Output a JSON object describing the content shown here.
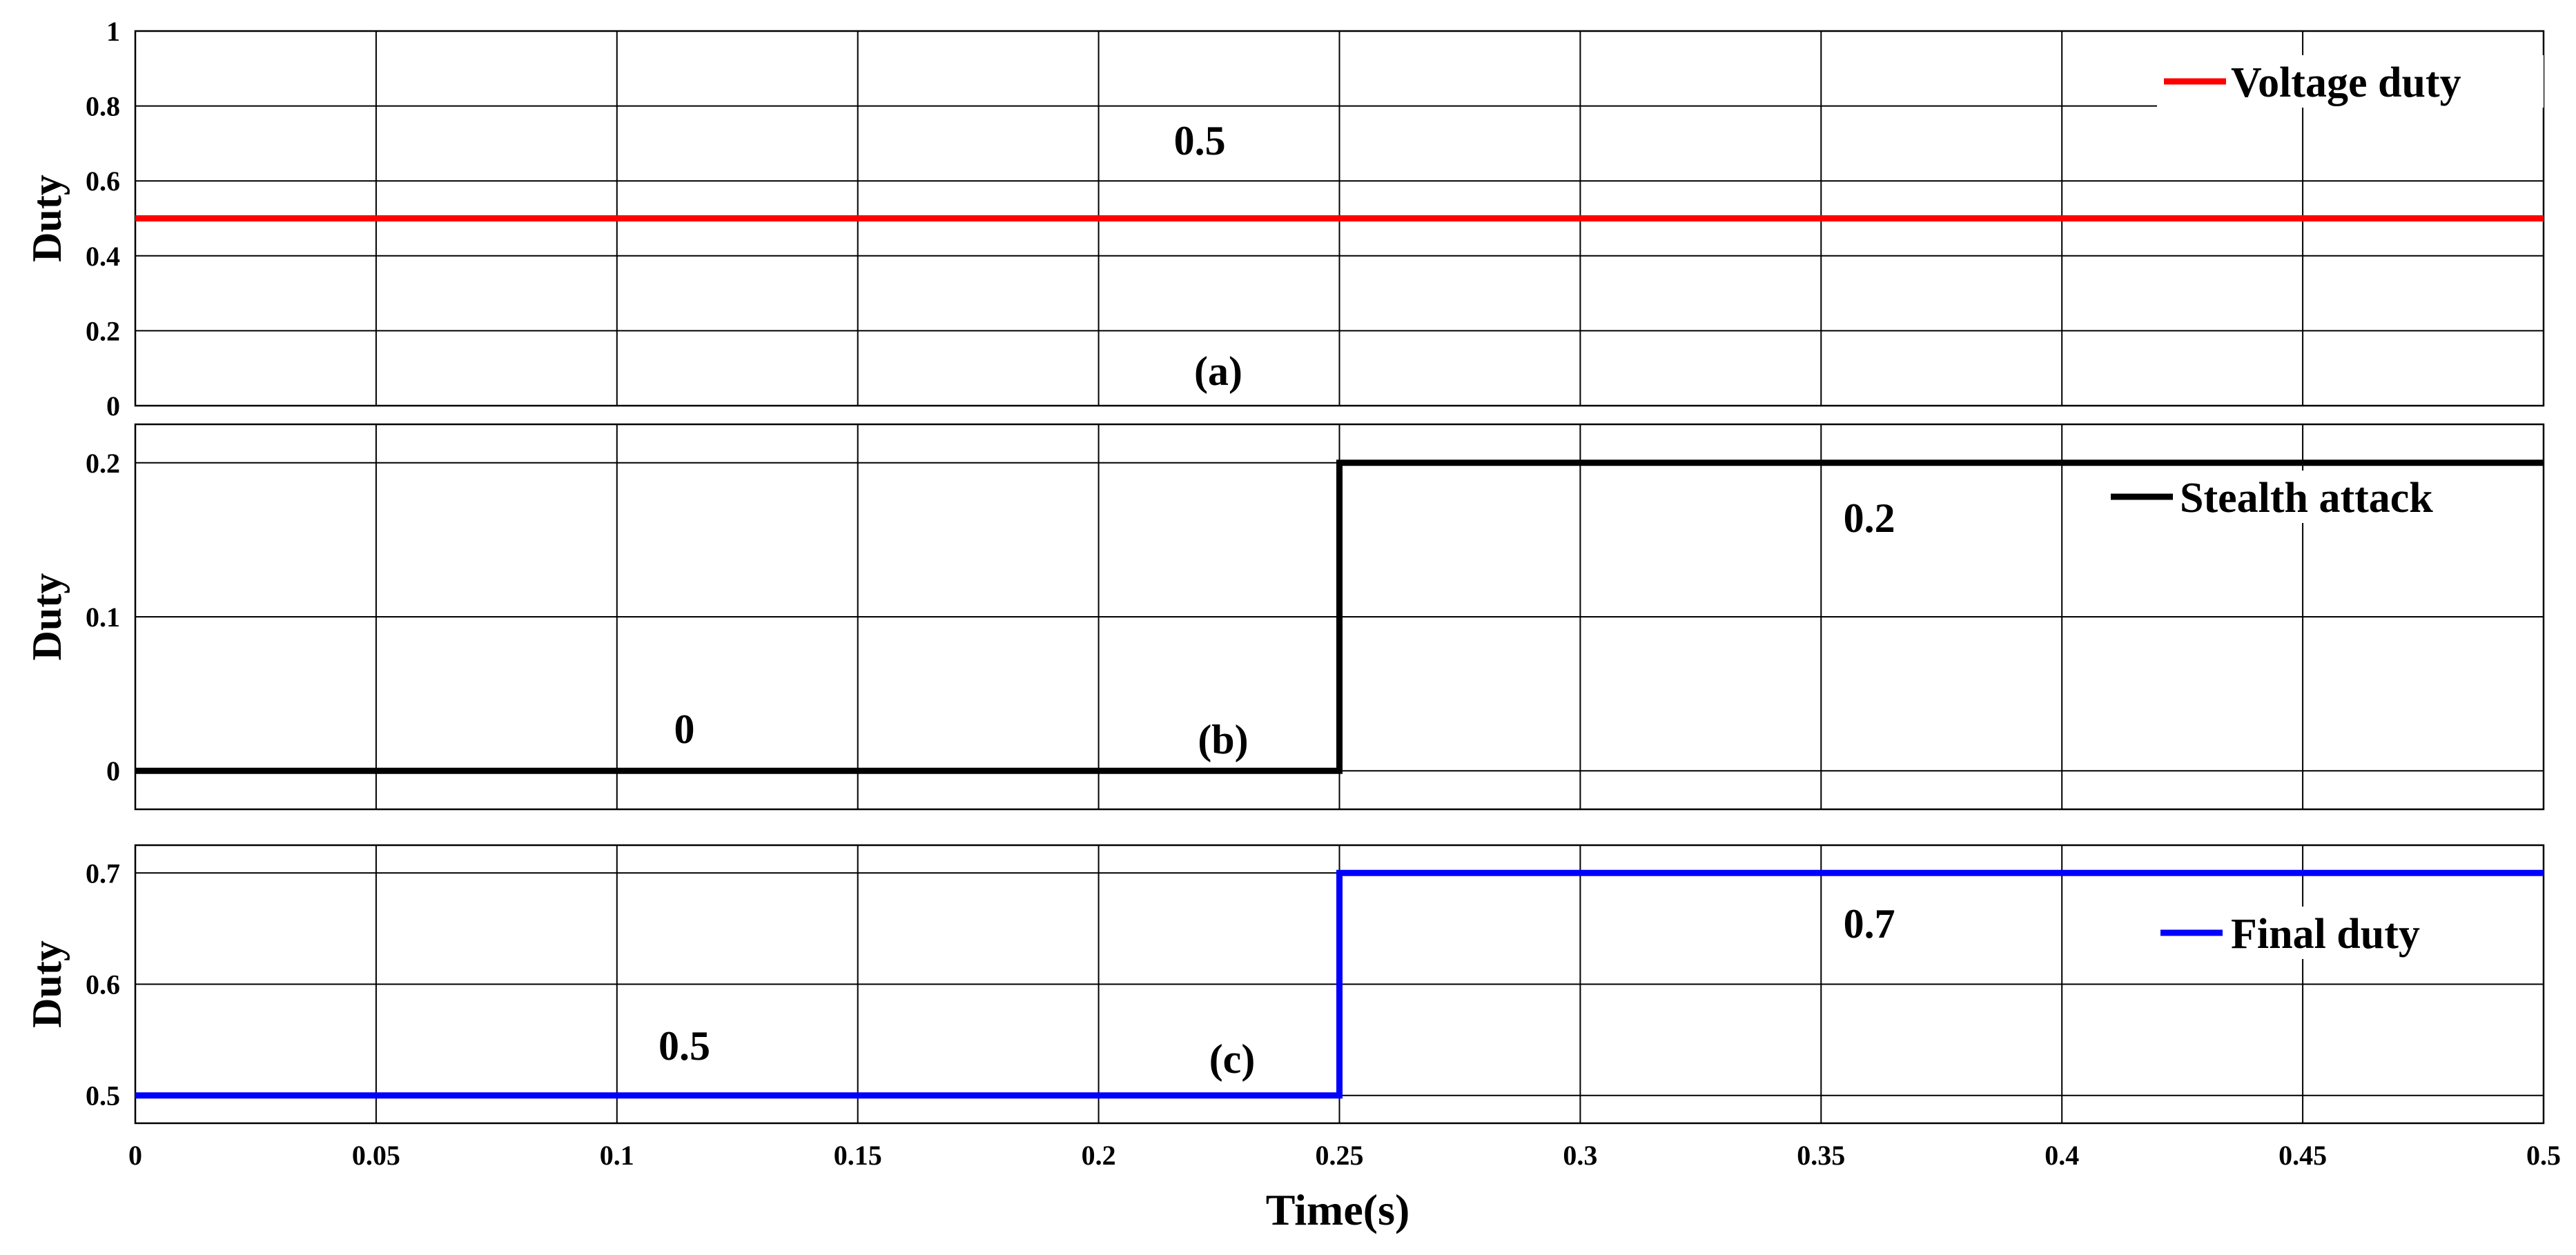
{
  "chart_data": [
    {
      "type": "line",
      "panel": "(a)",
      "ylabel": "Duty",
      "xlim": [
        0,
        0.5
      ],
      "ylim": [
        0,
        1
      ],
      "yticks": [
        0,
        0.2,
        0.4,
        0.6,
        0.8,
        1
      ],
      "yticks_text": [
        "0",
        "0.2",
        "0.4",
        "0.6",
        "0.8",
        "1"
      ],
      "grid": true,
      "legend_position": "top-right",
      "series": [
        {
          "name": "Voltage duty",
          "color": "#ff0000",
          "x": [
            0,
            0.5
          ],
          "y": [
            0.5,
            0.5
          ]
        }
      ],
      "annotations": [
        {
          "text": "0.5",
          "x": 0.221,
          "y": 0.67
        }
      ]
    },
    {
      "type": "line",
      "panel": "(b)",
      "ylabel": "Duty",
      "xlim": [
        0,
        0.5
      ],
      "ylim": [
        -0.025,
        0.225
      ],
      "yticks": [
        0,
        0.1,
        0.2
      ],
      "yticks_text": [
        "0",
        "0.1",
        "0.2"
      ],
      "grid": true,
      "legend_position": "top-right",
      "series": [
        {
          "name": "Stealth attack",
          "color": "#000000",
          "x": [
            0,
            0.25,
            0.25,
            0.5
          ],
          "y": [
            0,
            0,
            0.2,
            0.2
          ]
        }
      ],
      "annotations": [
        {
          "text": "0",
          "x": 0.114,
          "y": 0.018
        },
        {
          "text": "0.2",
          "x": 0.36,
          "y": 0.155
        }
      ]
    },
    {
      "type": "line",
      "panel": "(c)",
      "ylabel": "Duty",
      "xlabel": "Time(s)",
      "xlim": [
        0,
        0.5
      ],
      "ylim": [
        0.475,
        0.725
      ],
      "yticks": [
        0.5,
        0.6,
        0.7
      ],
      "yticks_text": [
        "0.5",
        "0.6",
        "0.7"
      ],
      "xticks": [
        0,
        0.05,
        0.1,
        0.15,
        0.2,
        0.25,
        0.3,
        0.35,
        0.4,
        0.45,
        0.5
      ],
      "xticks_text": [
        "0",
        "0.05",
        "0.1",
        "0.15",
        "0.2",
        "0.25",
        "0.3",
        "0.35",
        "0.4",
        "0.45",
        "0.5"
      ],
      "grid": true,
      "legend_position": "top-right",
      "series": [
        {
          "name": "Final duty",
          "color": "#0000ff",
          "x": [
            0,
            0.25,
            0.25,
            0.5
          ],
          "y": [
            0.5,
            0.5,
            0.7,
            0.7
          ]
        }
      ],
      "annotations": [
        {
          "text": "0.5",
          "x": 0.114,
          "y": 0.532
        },
        {
          "text": "0.7",
          "x": 0.36,
          "y": 0.642
        }
      ]
    }
  ]
}
